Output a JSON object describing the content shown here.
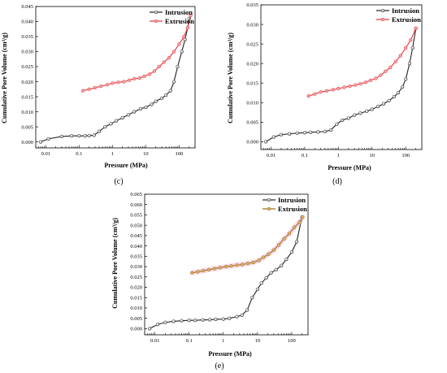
{
  "chart_data": [
    {
      "type": "line",
      "panel_label": "(c)",
      "xlabel": "Pressure (MPa)",
      "ylabel": "Cumulative Pore Volume (cm³/g)",
      "x_scale": "log",
      "xlim": [
        0.005,
        300
      ],
      "ylim": [
        -0.002,
        0.045
      ],
      "x_ticks": [
        0.01,
        0.1,
        1,
        10,
        100
      ],
      "x_tick_labels": [
        "0.01",
        "0.1",
        "1",
        "10",
        "100"
      ],
      "y_ticks": [
        0,
        0.005,
        0.01,
        0.015,
        0.02,
        0.025,
        0.03,
        0.035,
        0.04,
        0.045
      ],
      "y_tick_labels": [
        "0.000",
        "0.005",
        "0.010",
        "0.015",
        "0.020",
        "0.025",
        "0.030",
        "0.035",
        "0.040",
        "0.045"
      ],
      "legend_position": "top-right",
      "series": [
        {
          "name": "Intrusion",
          "color": "#222222",
          "x": [
            0.007,
            0.012,
            0.03,
            0.06,
            0.1,
            0.15,
            0.2,
            0.28,
            0.4,
            0.6,
            0.9,
            1.3,
            2,
            3,
            4.5,
            7,
            10,
            15,
            20,
            30,
            40,
            55,
            70,
            90,
            120,
            150,
            180,
            200
          ],
          "y": [
            0.0,
            0.001,
            0.0018,
            0.002,
            0.002,
            0.002,
            0.0021,
            0.0022,
            0.0035,
            0.005,
            0.006,
            0.007,
            0.008,
            0.009,
            0.01,
            0.011,
            0.0115,
            0.0125,
            0.0135,
            0.0145,
            0.0155,
            0.017,
            0.02,
            0.025,
            0.03,
            0.034,
            0.038,
            0.041
          ]
        },
        {
          "name": "Extrusion",
          "color": "#e8333b",
          "x": [
            0.13,
            0.2,
            0.3,
            0.45,
            0.7,
            1,
            1.5,
            2.2,
            3.2,
            4.5,
            6.5,
            9,
            13,
            18,
            25,
            35,
            50,
            70,
            100,
            140,
            180,
            220
          ],
          "y": [
            0.017,
            0.0175,
            0.018,
            0.0185,
            0.019,
            0.0195,
            0.0198,
            0.02,
            0.0205,
            0.021,
            0.0212,
            0.0218,
            0.0225,
            0.0235,
            0.025,
            0.0265,
            0.028,
            0.03,
            0.0325,
            0.035,
            0.038,
            0.042
          ]
        }
      ]
    },
    {
      "type": "line",
      "panel_label": "(d)",
      "xlabel": "Pressure (MPa)",
      "ylabel": "Cumulative Pore Volume (cm³/g)",
      "x_scale": "log",
      "xlim": [
        0.005,
        300
      ],
      "ylim": [
        -0.002,
        0.035
      ],
      "x_ticks": [
        0.01,
        0.1,
        1,
        10,
        100
      ],
      "x_tick_labels": [
        "0.01",
        "0.1",
        "1",
        "10",
        "100"
      ],
      "y_ticks": [
        0,
        0.005,
        0.01,
        0.015,
        0.02,
        0.025,
        0.03,
        0.035
      ],
      "y_tick_labels": [
        "0.000",
        "0.005",
        "0.010",
        "0.015",
        "0.020",
        "0.025",
        "0.030",
        "0.035"
      ],
      "legend_position": "top-right",
      "series": [
        {
          "name": "Intrusion",
          "color": "#222222",
          "x": [
            0.007,
            0.012,
            0.02,
            0.035,
            0.06,
            0.1,
            0.15,
            0.25,
            0.4,
            0.6,
            0.9,
            1.3,
            2,
            3,
            4.5,
            7,
            10,
            15,
            22,
            32,
            45,
            60,
            80,
            100,
            130,
            160,
            200
          ],
          "y": [
            0.0,
            0.0012,
            0.0018,
            0.002,
            0.0022,
            0.0023,
            0.0024,
            0.0025,
            0.0026,
            0.003,
            0.0045,
            0.0055,
            0.006,
            0.0068,
            0.0073,
            0.0078,
            0.0083,
            0.009,
            0.0097,
            0.0105,
            0.0115,
            0.0125,
            0.014,
            0.016,
            0.02,
            0.024,
            0.029
          ]
        },
        {
          "name": "Extrusion",
          "color": "#e8333b",
          "x": [
            0.13,
            0.2,
            0.3,
            0.45,
            0.7,
            1,
            1.5,
            2.2,
            3.2,
            4.5,
            6.5,
            9,
            13,
            18,
            25,
            35,
            50,
            70,
            100,
            140,
            200
          ],
          "y": [
            0.0117,
            0.0122,
            0.0127,
            0.013,
            0.0133,
            0.0136,
            0.0139,
            0.0142,
            0.0145,
            0.0148,
            0.0152,
            0.0157,
            0.0162,
            0.017,
            0.018,
            0.019,
            0.0205,
            0.022,
            0.024,
            0.026,
            0.029
          ]
        }
      ]
    },
    {
      "type": "line",
      "panel_label": "(e)",
      "xlabel": "Pressure (MPa)",
      "ylabel": "Cumulative Pore Volume (cm³/g)",
      "x_scale": "log",
      "xlim": [
        0.005,
        300
      ],
      "ylim": [
        -0.003,
        0.065
      ],
      "x_ticks": [
        0.01,
        0.1,
        1,
        10,
        100
      ],
      "x_tick_labels": [
        "0.01",
        "0.1",
        "1",
        "10",
        "100"
      ],
      "y_ticks": [
        0,
        0.005,
        0.01,
        0.015,
        0.02,
        0.025,
        0.03,
        0.035,
        0.04,
        0.045,
        0.05,
        0.055,
        0.06,
        0.065
      ],
      "y_tick_labels": [
        "0.000",
        "0.005",
        "0.010",
        "0.015",
        "0.020",
        "0.025",
        "0.030",
        "0.035",
        "0.040",
        "0.045",
        "0.050",
        "0.055",
        "0.060",
        "0.065"
      ],
      "legend_position": "top-right",
      "series": [
        {
          "name": "Intrusion",
          "color": "#222222",
          "x": [
            0.007,
            0.012,
            0.02,
            0.035,
            0.06,
            0.1,
            0.15,
            0.25,
            0.4,
            0.6,
            1,
            1.5,
            2.5,
            3.5,
            5,
            7,
            10,
            13,
            18,
            25,
            35,
            50,
            70,
            100,
            140,
            200
          ],
          "y": [
            0.0,
            0.002,
            0.003,
            0.0035,
            0.0038,
            0.004,
            0.004,
            0.0042,
            0.0043,
            0.0045,
            0.0046,
            0.005,
            0.0058,
            0.0065,
            0.009,
            0.015,
            0.019,
            0.022,
            0.0245,
            0.027,
            0.0285,
            0.0305,
            0.0335,
            0.037,
            0.042,
            0.054
          ]
        },
        {
          "name": "Extrusion",
          "color": "#9a6a1c",
          "x": [
            0.12,
            0.18,
            0.26,
            0.38,
            0.55,
            0.8,
            1.2,
            1.7,
            2.5,
            3.6,
            5.2,
            7.5,
            11,
            15,
            21,
            30,
            42,
            60,
            85,
            120,
            170,
            210
          ],
          "y": [
            0.027,
            0.0275,
            0.028,
            0.0285,
            0.029,
            0.0295,
            0.03,
            0.0303,
            0.0307,
            0.031,
            0.0315,
            0.032,
            0.033,
            0.0345,
            0.036,
            0.038,
            0.0405,
            0.0435,
            0.046,
            0.049,
            0.0515,
            0.054
          ]
        }
      ]
    }
  ]
}
